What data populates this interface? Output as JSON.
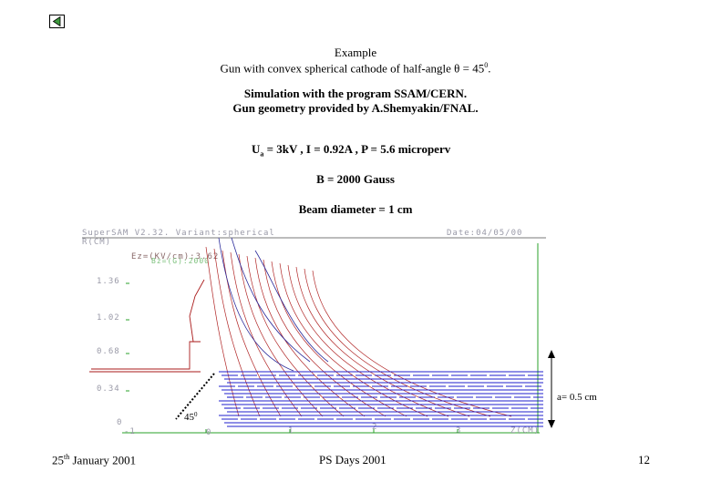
{
  "header": {
    "line1": "Example",
    "line2_prefix": "Gun with convex spherical cathode of half-angle ",
    "theta": "θ",
    "line2_eq": " = 45",
    "deg_sup": "0",
    "line2_end": "."
  },
  "simulation": {
    "line1": "Simulation with the program  SSAM/CERN.",
    "line2": "Gun geometry provided by A.Shemyakin/FNAL."
  },
  "params": {
    "u_label": "U",
    "u_sub": "a",
    "rest": " = 3kV ,  I = 0.92A , P = 5.6 microperv",
    "field": "B = 2000 Gauss",
    "beam": "Beam diameter = 1 cm"
  },
  "plot": {
    "program_title": "SuperSAM V2.32. Variant:spherical",
    "date_label": "Date:04/05/00",
    "y_unit": "R(CM)",
    "legend_line1": "Ez=(KV/cm):3.62",
    "legend_line2": "Bz=(G):2000",
    "y_ticks": [
      "1.36",
      "1.02",
      "0.68",
      "0.34",
      "0"
    ],
    "x_ticks": [
      "-1",
      "0",
      "1",
      "2",
      "3",
      "Z(CM)"
    ],
    "angle_label": "45",
    "angle_sup": "0",
    "dimension_label": "a= 0.5 cm",
    "colors": {
      "electrodes": "#aa1a1a",
      "beam": "#1f1fcc",
      "frame": "#28a028",
      "magnetic": "#2a2a9a"
    }
  },
  "footer": {
    "date_prefix": "25",
    "date_sup": "th",
    "date_suffix": " January 2001",
    "event": "PS Days 2001",
    "page": "12"
  }
}
